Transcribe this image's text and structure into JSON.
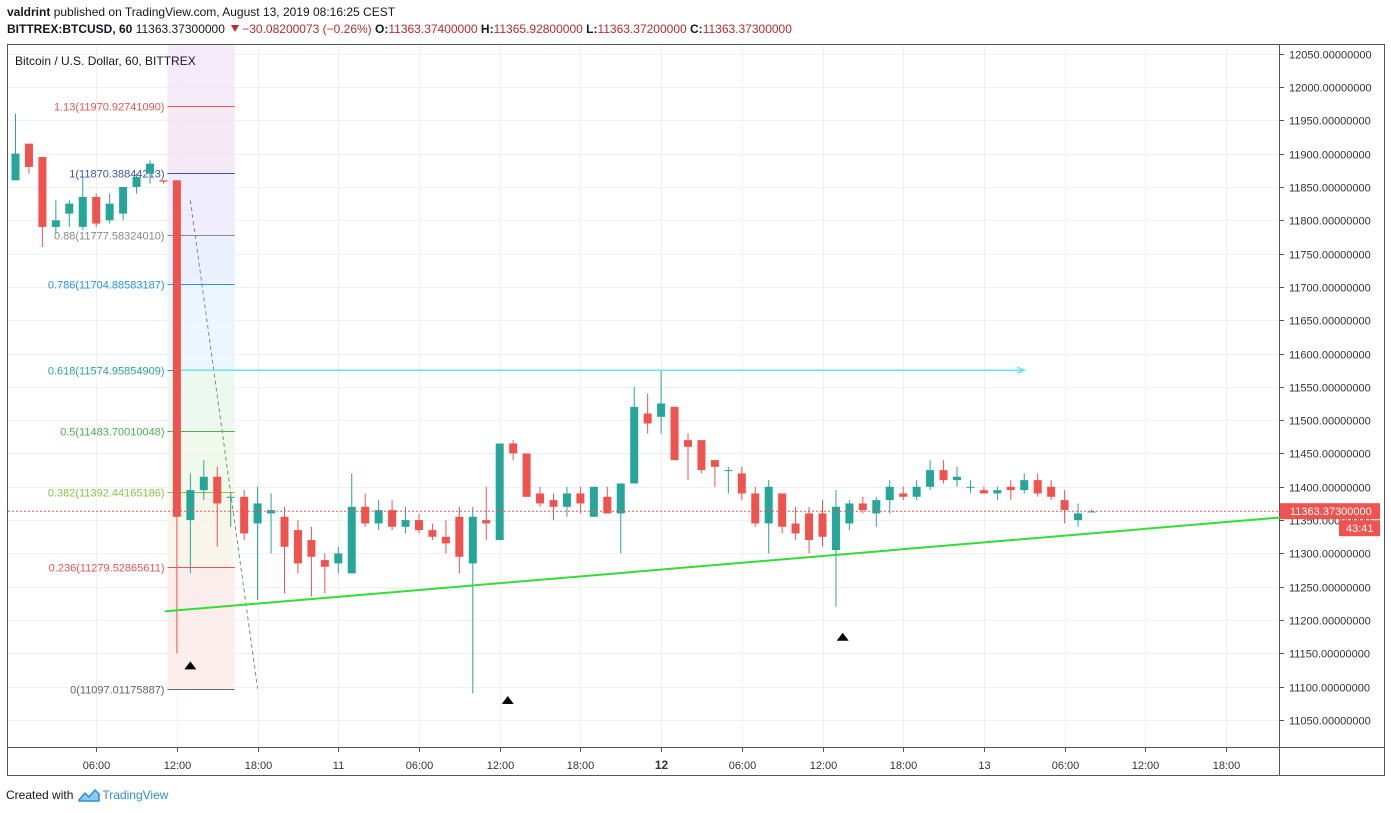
{
  "header": {
    "author": "valdrint",
    "published": "published on TradingView.com, August 13, 2019 08:16:25 CEST",
    "symbol": "BITTREX:BTCUSD, 60",
    "last": "11363.37300000",
    "change": "−30.08200073 (−0.26%)",
    "open_label": "O:",
    "open": "11363.37400000",
    "high_label": "H:",
    "high": "11365.92800000",
    "low_label": "L:",
    "low": "11363.37200000",
    "close_label": "C:",
    "close": "11363.37300000"
  },
  "footer": {
    "created_with": "Created with",
    "brand": "TradingView"
  },
  "colors": {
    "up": "#26a69a",
    "down": "#ef5350",
    "trend": "#33dd33",
    "target": "#66e6e6"
  },
  "chart_data": {
    "type": "candlestick",
    "title": "Bitcoin / U.S. Dollar, 60, BITTREX",
    "ylim": [
      11000,
      12080
    ],
    "y_ticks": [
      "12050.00000000",
      "12000.00000000",
      "11950.00000000",
      "11900.00000000",
      "11850.00000000",
      "11800.00000000",
      "11750.00000000",
      "11700.00000000",
      "11650.00000000",
      "11600.00000000",
      "11550.00000000",
      "11500.00000000",
      "11450.00000000",
      "11400.00000000",
      "11350.00000000",
      "11300.00000000",
      "11250.00000000",
      "11200.00000000",
      "11150.00000000",
      "11100.00000000",
      "11050.00000000"
    ],
    "y_tick_values": [
      12050,
      12000,
      11950,
      11900,
      11850,
      11800,
      11750,
      11700,
      11650,
      11600,
      11550,
      11500,
      11450,
      11400,
      11350,
      11300,
      11250,
      11200,
      11150,
      11100,
      11050
    ],
    "x_ticks": [
      "06:00",
      "12:00",
      "18:00",
      "11",
      "06:00",
      "12:00",
      "18:00",
      "12",
      "06:00",
      "12:00",
      "18:00",
      "13",
      "06:00",
      "12:00",
      "18:00"
    ],
    "x_tick_hours": [
      6,
      12,
      18,
      24,
      30,
      36,
      42,
      48,
      54,
      60,
      66,
      72,
      78,
      84,
      90
    ],
    "bold_x_ticks": [
      "12"
    ],
    "last_price_label": "11363.37300000",
    "countdown_label": "43:41",
    "last_price": 11363.373,
    "fib_levels": [
      {
        "label": "1.13(11970.92741090)",
        "price": 11970.9274,
        "color": "#ef5350"
      },
      {
        "label": "1(11870.38844213)",
        "price": 11870.3884,
        "color": "#3f51b5"
      },
      {
        "label": "0.88(11777.58324010)",
        "price": 11777.5832,
        "color": "#888888"
      },
      {
        "label": "0.786(11704.88583187)",
        "price": 11704.8858,
        "color": "#2196f3"
      },
      {
        "label": "0.618(11574.95854909)",
        "price": 11574.9585,
        "color": "#26a69a"
      },
      {
        "label": "0.5(11483.70010048)",
        "price": 11483.7001,
        "color": "#4caf50"
      },
      {
        "label": "0.382(11392.44165186)",
        "price": 11392.4417,
        "color": "#8bc34a"
      },
      {
        "label": "0.236(11279.52865611)",
        "price": 11279.5287,
        "color": "#ef5350"
      },
      {
        "label": "0(11097.01175887)",
        "price": 11097.0118,
        "color": "#666666"
      }
    ],
    "trendline": {
      "from_hour": 12,
      "from_price": 11213,
      "to_hour": 97,
      "to_price": 11359
    },
    "target_line": {
      "price": 11574.96,
      "from_hour": 12.3,
      "to_hour": 75
    },
    "fib_drag_line": {
      "from_hour": 13,
      "from_price": 11830,
      "to_hour": 18,
      "to_price": 11097
    },
    "markers": [
      {
        "hour": 13,
        "price": 11132
      },
      {
        "hour": 36.6,
        "price": 11080
      },
      {
        "hour": 61.5,
        "price": 11175
      }
    ],
    "candles": [
      [
        0,
        11860,
        11960,
        11860,
        11900
      ],
      [
        1,
        11915,
        11915,
        11870,
        11880
      ],
      [
        2,
        11895,
        11895,
        11760,
        11790
      ],
      [
        3,
        11790,
        11830,
        11780,
        11800
      ],
      [
        4,
        11810,
        11830,
        11790,
        11825
      ],
      [
        5,
        11790,
        11865,
        11785,
        11835
      ],
      [
        6,
        11835,
        11840,
        11790,
        11795
      ],
      [
        7,
        11800,
        11840,
        11795,
        11825
      ],
      [
        8,
        11810,
        11850,
        11800,
        11850
      ],
      [
        9,
        11850,
        11870,
        11840,
        11865
      ],
      [
        10,
        11870,
        11890,
        11855,
        11885
      ],
      [
        11,
        11860,
        11860,
        11855,
        11858
      ],
      [
        12,
        11860,
        11860,
        11150,
        11355
      ],
      [
        13,
        11350,
        11420,
        11270,
        11395
      ],
      [
        14,
        11395,
        11440,
        11380,
        11415
      ],
      [
        15,
        11415,
        11430,
        11310,
        11375
      ],
      [
        16,
        11385,
        11390,
        11340,
        11385
      ],
      [
        17,
        11385,
        11395,
        11320,
        11330
      ],
      [
        18,
        11345,
        11400,
        11230,
        11375
      ],
      [
        19,
        11360,
        11390,
        11300,
        11365
      ],
      [
        20,
        11355,
        11370,
        11240,
        11310
      ],
      [
        21,
        11335,
        11350,
        11270,
        11285
      ],
      [
        22,
        11320,
        11340,
        11235,
        11295
      ],
      [
        23,
        11290,
        11300,
        11240,
        11280
      ],
      [
        24,
        11285,
        11310,
        11270,
        11300
      ],
      [
        25,
        11270,
        11420,
        11270,
        11370
      ],
      [
        26,
        11370,
        11390,
        11340,
        11345
      ],
      [
        27,
        11345,
        11380,
        11335,
        11365
      ],
      [
        28,
        11365,
        11380,
        11335,
        11340
      ],
      [
        29,
        11340,
        11370,
        11330,
        11350
      ],
      [
        30,
        11350,
        11360,
        11330,
        11335
      ],
      [
        31,
        11335,
        11345,
        11320,
        11325
      ],
      [
        32,
        11325,
        11350,
        11300,
        11315
      ],
      [
        33,
        11355,
        11370,
        11270,
        11295
      ],
      [
        34,
        11285,
        11370,
        11090,
        11355
      ],
      [
        35,
        11350,
        11400,
        11320,
        11345
      ],
      [
        36,
        11320,
        11460,
        11320,
        11465
      ],
      [
        37,
        11465,
        11470,
        11440,
        11450
      ],
      [
        38,
        11450,
        11450,
        11385,
        11385
      ],
      [
        39,
        11390,
        11400,
        11370,
        11375
      ],
      [
        40,
        11380,
        11390,
        11350,
        11370
      ],
      [
        41,
        11370,
        11400,
        11355,
        11390
      ],
      [
        42,
        11390,
        11400,
        11360,
        11375
      ],
      [
        43,
        11355,
        11400,
        11355,
        11400
      ],
      [
        44,
        11385,
        11400,
        11360,
        11360
      ],
      [
        45,
        11360,
        11395,
        11300,
        11405
      ],
      [
        46,
        11405,
        11550,
        11405,
        11520
      ],
      [
        47,
        11510,
        11540,
        11480,
        11495
      ],
      [
        48,
        11505,
        11575,
        11480,
        11525
      ],
      [
        49,
        11520,
        11520,
        11440,
        11440
      ],
      [
        50,
        11470,
        11480,
        11410,
        11460
      ],
      [
        51,
        11470,
        11470,
        11420,
        11425
      ],
      [
        52,
        11440,
        11440,
        11400,
        11430
      ],
      [
        53,
        11425,
        11430,
        11390,
        11425
      ],
      [
        54,
        11420,
        11430,
        11380,
        11390
      ],
      [
        55,
        11390,
        11400,
        11340,
        11345
      ],
      [
        56,
        11345,
        11410,
        11300,
        11400
      ],
      [
        57,
        11390,
        11390,
        11330,
        11340
      ],
      [
        58,
        11345,
        11370,
        11320,
        11330
      ],
      [
        59,
        11360,
        11370,
        11300,
        11320
      ],
      [
        60,
        11360,
        11380,
        11310,
        11325
      ],
      [
        61,
        11305,
        11395,
        11220,
        11370
      ],
      [
        62,
        11345,
        11380,
        11335,
        11375
      ],
      [
        63,
        11375,
        11385,
        11360,
        11365
      ],
      [
        64,
        11360,
        11385,
        11340,
        11380
      ],
      [
        65,
        11380,
        11410,
        11360,
        11400
      ],
      [
        66,
        11390,
        11400,
        11380,
        11385
      ],
      [
        67,
        11385,
        11410,
        11380,
        11400
      ],
      [
        68,
        11400,
        11440,
        11395,
        11425
      ],
      [
        69,
        11425,
        11440,
        11405,
        11410
      ],
      [
        70,
        11410,
        11430,
        11400,
        11415
      ],
      [
        71,
        11400,
        11410,
        11390,
        11400
      ],
      [
        72,
        11395,
        11400,
        11390,
        11390
      ],
      [
        73,
        11390,
        11400,
        11380,
        11395
      ],
      [
        74,
        11400,
        11410,
        11380,
        11395
      ],
      [
        75,
        11395,
        11420,
        11390,
        11410
      ],
      [
        76,
        11410,
        11420,
        11385,
        11390
      ],
      [
        77,
        11400,
        11410,
        11380,
        11385
      ],
      [
        78,
        11380,
        11395,
        11345,
        11365
      ],
      [
        79,
        11350,
        11375,
        11340,
        11360
      ],
      [
        80,
        11363,
        11366,
        11363,
        11363
      ]
    ]
  }
}
